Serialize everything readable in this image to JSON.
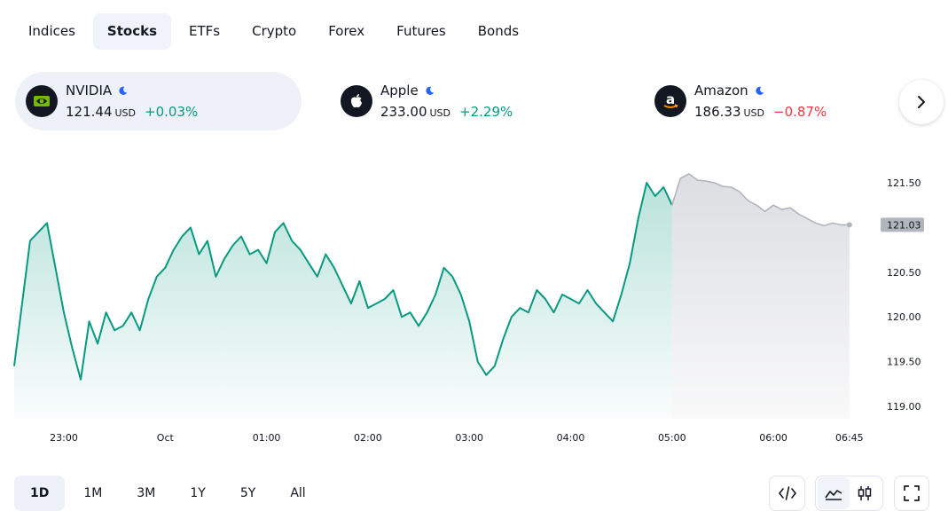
{
  "tabs": [
    {
      "label": "Indices",
      "active": false
    },
    {
      "label": "Stocks",
      "active": true
    },
    {
      "label": "ETFs",
      "active": false
    },
    {
      "label": "Crypto",
      "active": false
    },
    {
      "label": "Forex",
      "active": false
    },
    {
      "label": "Futures",
      "active": false
    },
    {
      "label": "Bonds",
      "active": false
    }
  ],
  "tickers": [
    {
      "name": "NVIDIA",
      "price": "121.44",
      "currency": "USD",
      "change": "+0.03%",
      "direction": "up",
      "logo": "nvidia-logo",
      "status": "moon-icon"
    },
    {
      "name": "Apple",
      "price": "233.00",
      "currency": "USD",
      "change": "+2.29%",
      "direction": "up",
      "logo": "apple-logo",
      "status": "moon-icon"
    },
    {
      "name": "Amazon",
      "price": "186.33",
      "currency": "USD",
      "change": "−0.87%",
      "direction": "down",
      "logo": "amazon-logo",
      "status": "moon-icon"
    }
  ],
  "ranges": [
    {
      "label": "1D",
      "active": true
    },
    {
      "label": "1M",
      "active": false
    },
    {
      "label": "3M",
      "active": false
    },
    {
      "label": "1Y",
      "active": false
    },
    {
      "label": "5Y",
      "active": false
    },
    {
      "label": "All",
      "active": false
    }
  ],
  "tools": {
    "embed": "code-icon",
    "area": "area-chart-icon",
    "candles": "candlestick-icon",
    "fullscreen": "fullscreen-icon"
  },
  "colors": {
    "up": "#089981",
    "down": "#f23645",
    "line": "#089981",
    "extended": "#b2b5be",
    "price_label_bg": "#b2b5be"
  },
  "chart_data": {
    "type": "area",
    "symbol": "NVIDIA",
    "x_ticks": [
      "23:00",
      "Oct",
      "01:00",
      "02:00",
      "03:00",
      "04:00",
      "05:00",
      "06:00",
      "06:45"
    ],
    "y_ticks": [
      121.5,
      120.5,
      120.0,
      119.5,
      119.0
    ],
    "ylim": [
      118.9,
      121.65
    ],
    "last_price_label": "121.03",
    "grid": false,
    "series": [
      {
        "session": "regular",
        "color": "#089981",
        "x": [
          "22:35",
          "22:40",
          "22:45",
          "22:50",
          "22:55",
          "23:00",
          "23:05",
          "23:10",
          "23:15",
          "23:20",
          "23:25",
          "23:30",
          "23:35",
          "23:40",
          "23:45",
          "23:50",
          "23:55",
          "00:00",
          "00:05",
          "00:10",
          "00:15",
          "00:20",
          "00:25",
          "00:30",
          "00:35",
          "00:40",
          "00:45",
          "00:50",
          "00:55",
          "01:00",
          "01:05",
          "01:10",
          "01:15",
          "01:20",
          "01:25",
          "01:30",
          "01:35",
          "01:40",
          "01:45",
          "01:50",
          "01:55",
          "02:00",
          "02:05",
          "02:10",
          "02:15",
          "02:20",
          "02:25",
          "02:30",
          "02:35",
          "02:40",
          "02:45",
          "02:50",
          "02:55",
          "03:00",
          "03:05",
          "03:10",
          "03:15",
          "03:20",
          "03:25",
          "03:30",
          "03:35",
          "03:40",
          "03:45",
          "03:50",
          "03:55",
          "04:00",
          "04:05",
          "04:10",
          "04:15",
          "04:20",
          "04:25",
          "04:30",
          "04:35",
          "04:40",
          "04:45",
          "04:50",
          "04:55",
          "05:00"
        ],
        "values": [
          119.45,
          120.85,
          120.95,
          121.05,
          120.55,
          120.05,
          119.65,
          119.3,
          119.95,
          119.7,
          120.05,
          119.85,
          119.9,
          120.05,
          119.85,
          120.2,
          120.45,
          120.55,
          120.75,
          120.9,
          121.0,
          120.7,
          120.85,
          120.45,
          120.65,
          120.8,
          120.9,
          120.7,
          120.75,
          120.6,
          120.95,
          121.05,
          120.85,
          120.75,
          120.6,
          120.45,
          120.7,
          120.55,
          120.35,
          120.15,
          120.4,
          120.1,
          120.15,
          120.2,
          120.3,
          120.0,
          120.05,
          119.9,
          120.05,
          120.25,
          120.55,
          120.45,
          120.25,
          119.95,
          119.5,
          119.35,
          119.45,
          119.75,
          120.0,
          120.1,
          120.05,
          120.3,
          120.2,
          120.05,
          120.25,
          120.2,
          120.15,
          120.3,
          120.15,
          120.05,
          119.95,
          120.25,
          120.6,
          121.1,
          121.5,
          121.35,
          121.45,
          121.25
        ]
      },
      {
        "session": "extended",
        "color": "#b2b5be",
        "x": [
          "05:00",
          "05:05",
          "05:10",
          "05:15",
          "05:20",
          "05:25",
          "05:30",
          "05:35",
          "05:40",
          "05:45",
          "05:50",
          "05:55",
          "06:00",
          "06:05",
          "06:10",
          "06:15",
          "06:20",
          "06:25",
          "06:30",
          "06:35",
          "06:40",
          "06:45"
        ],
        "values": [
          121.25,
          121.55,
          121.6,
          121.53,
          121.52,
          121.5,
          121.46,
          121.45,
          121.4,
          121.3,
          121.25,
          121.18,
          121.25,
          121.2,
          121.22,
          121.15,
          121.1,
          121.05,
          121.02,
          121.05,
          121.03,
          121.03
        ]
      }
    ]
  }
}
